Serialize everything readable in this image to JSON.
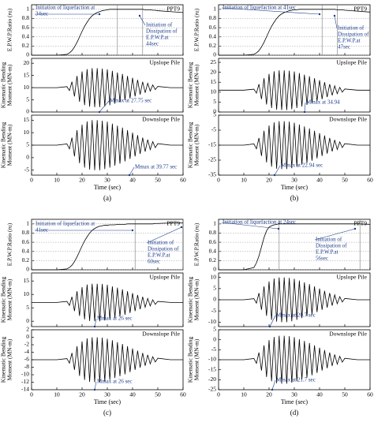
{
  "chart_data": [
    {
      "type": "line",
      "caption": "(a)",
      "xlabel": "Time (sec)",
      "xlim": [
        0,
        60
      ],
      "xticks": [
        0,
        10,
        20,
        30,
        40,
        50,
        60
      ],
      "x": [
        0,
        10,
        14,
        15,
        16,
        17,
        18,
        19,
        20,
        21,
        22,
        23,
        24,
        25,
        26,
        27,
        28,
        29,
        30,
        31,
        32,
        33,
        34,
        35,
        36,
        37,
        38,
        39,
        40,
        41,
        42,
        43,
        44,
        45,
        46,
        47,
        48,
        49,
        50,
        55,
        60
      ],
      "series": [
        {
          "name": "PPT9",
          "color": "#000000",
          "ylabel": [
            "E.P.W.P.Ratio (ru)"
          ],
          "ylim": [
            0,
            1.1
          ],
          "yticks": [
            0,
            0.2,
            0.4,
            0.6,
            0.8,
            1
          ],
          "grid": true,
          "markers": [
            34,
            44
          ],
          "annotations": [
            [
              "Initiation of liquefaction at",
              "34sec"
            ],
            [
              "Initiation of",
              "Dissipation of",
              "E.P.W.P.at",
              "44sec"
            ]
          ],
          "values": [
            0,
            0,
            0.02,
            0.05,
            0.1,
            0.18,
            0.28,
            0.4,
            0.52,
            0.63,
            0.72,
            0.8,
            0.86,
            0.9,
            0.93,
            0.95,
            0.97,
            0.98,
            0.99,
            1,
            1,
            1,
            1,
            1,
            1,
            1,
            1,
            1,
            1,
            1,
            1,
            1,
            1,
            0.99,
            0.99,
            0.99,
            0.98,
            0.98,
            0.97,
            0.95,
            0.93
          ]
        },
        {
          "name": "Upslope Pile",
          "color": "#000000",
          "ylabel": [
            "Kinematic Bending",
            "Moment (MN-m)"
          ],
          "ylim": [
            0,
            22
          ],
          "yticks": [
            0,
            5,
            10,
            15,
            20
          ],
          "annotations": [
            [
              "Mmax at 27.75 sec"
            ]
          ],
          "values": [
            10,
            10,
            10.4,
            8.8,
            12.4,
            6.4,
            14.8,
            4.2,
            16.6,
            2.8,
            17.6,
            2.2,
            18,
            2,
            18,
            2,
            17.8,
            2.3,
            17.5,
            2.8,
            16.9,
            3.4,
            16.2,
            4.1,
            15.6,
            4.8,
            14.8,
            5.6,
            14,
            6.4,
            13.2,
            7.2,
            12.4,
            7.9,
            11.8,
            8.6,
            11.1,
            9.2,
            10.5,
            10,
            10
          ]
        },
        {
          "name": "Downslope Pile",
          "color": "#000000",
          "ylabel": [
            "Kinematic Bending",
            "Moment (MN-m)"
          ],
          "ylim": [
            -7,
            17
          ],
          "yticks": [
            -5,
            0,
            5,
            10,
            15
          ],
          "annotations": [
            [
              "Mmax at 39.77 sec"
            ]
          ],
          "values": [
            5,
            5,
            5.5,
            3.5,
            8,
            0.5,
            11,
            -2.2,
            13.2,
            -4,
            14.5,
            -4.8,
            15,
            -5,
            15,
            -5,
            14.8,
            -4.6,
            14.4,
            -4,
            13.6,
            -3.2,
            12.8,
            -2.4,
            12,
            -1.5,
            11,
            -0.5,
            10,
            0.5,
            9,
            1.5,
            8,
            2.4,
            7.2,
            3.2,
            6.4,
            4,
            5.6,
            5,
            5
          ]
        }
      ]
    },
    {
      "type": "line",
      "caption": "(b)",
      "xlabel": "Time (sec)",
      "xlim": [
        0,
        60
      ],
      "xticks": [
        0,
        10,
        20,
        30,
        40,
        50,
        60
      ],
      "x": [
        0,
        10,
        14,
        15,
        16,
        17,
        18,
        19,
        20,
        21,
        22,
        23,
        24,
        25,
        26,
        27,
        28,
        29,
        30,
        31,
        32,
        33,
        34,
        35,
        36,
        37,
        38,
        39,
        40,
        41,
        42,
        43,
        44,
        45,
        46,
        47,
        48,
        49,
        50,
        55,
        60
      ],
      "series": [
        {
          "name": "PPT9",
          "color": "#000000",
          "ylabel": [
            "E.P.W.P.Ratio (ru)"
          ],
          "ylim": [
            0,
            1.1
          ],
          "yticks": [
            0,
            0.2,
            0.4,
            0.6,
            0.8,
            1
          ],
          "grid": true,
          "markers": [
            41,
            47
          ],
          "annotations": [
            [
              "Initiation of liquefaction at 41sec"
            ],
            [
              "Initiation of",
              "Dissipation of",
              "E.P.W.P.at",
              "47sec"
            ]
          ],
          "values": [
            0,
            0,
            0.02,
            0.05,
            0.1,
            0.18,
            0.28,
            0.4,
            0.52,
            0.63,
            0.72,
            0.8,
            0.86,
            0.9,
            0.93,
            0.95,
            0.97,
            0.98,
            0.99,
            0.99,
            1,
            1,
            1,
            1,
            1,
            1,
            1,
            1,
            1,
            1,
            1,
            1,
            1,
            1,
            1,
            0.99,
            0.99,
            0.99,
            0.98,
            0.96,
            0.94
          ]
        },
        {
          "name": "Upslope Pile",
          "color": "#000000",
          "ylabel": [
            "Kinematic Bending",
            "Moment (MN-m)"
          ],
          "ylim": [
            0,
            27
          ],
          "yticks": [
            0,
            5,
            10,
            15,
            20,
            25
          ],
          "annotations": [
            [
              "Mmax at 34.94"
            ]
          ],
          "values": [
            11,
            11,
            11.5,
            9.5,
            14,
            6.5,
            17,
            3.8,
            19.2,
            2,
            20.5,
            1.2,
            21,
            1,
            21,
            1,
            20.8,
            1.4,
            20.4,
            2,
            19.6,
            2.8,
            18.8,
            3.6,
            18,
            4.5,
            17,
            5.5,
            16,
            6.5,
            15,
            7.5,
            14,
            8.4,
            13.2,
            9.2,
            12.4,
            10,
            11.6,
            11,
            11
          ]
        },
        {
          "name": "Downslope Pile",
          "color": "#000000",
          "ylabel": [
            "Kinematic Bending",
            "Moment (MN-m)"
          ],
          "ylim": [
            -35,
            5
          ],
          "yticks": [
            -35,
            -25,
            -15,
            -5,
            5
          ],
          "annotations": [
            [
              "Mmax at 22.94 sec"
            ]
          ],
          "values": [
            -15,
            -15,
            -14.2,
            -17.4,
            -10.2,
            -22.2,
            -5.4,
            -26.5,
            -1.9,
            -29.4,
            0.2,
            -30.7,
            1,
            -31,
            1,
            -31,
            0.7,
            -30.4,
            0,
            -29.4,
            -1.2,
            -28.1,
            -2.5,
            -26.8,
            -3.8,
            -25.4,
            -5.4,
            -23.8,
            -7,
            -22.2,
            -8.6,
            -20.6,
            -10.2,
            -19.2,
            -11.5,
            -17.9,
            -12.8,
            -16.6,
            -14,
            -15,
            -15
          ]
        }
      ]
    },
    {
      "type": "line",
      "caption": "(c)",
      "xlabel": "Time (sec)",
      "xlim": [
        0,
        60
      ],
      "xticks": [
        0,
        10,
        20,
        30,
        40,
        50,
        60
      ],
      "x": [
        0,
        10,
        14,
        15,
        16,
        17,
        18,
        19,
        20,
        21,
        22,
        23,
        24,
        25,
        26,
        27,
        28,
        29,
        30,
        31,
        32,
        33,
        34,
        35,
        36,
        37,
        38,
        39,
        40,
        41,
        42,
        43,
        44,
        45,
        46,
        47,
        48,
        49,
        50,
        55,
        60
      ],
      "series": [
        {
          "name": "PPT9",
          "color": "#000000",
          "ylabel": [
            "E.P.W.P.Ratio (ru)"
          ],
          "ylim": [
            0,
            1.1
          ],
          "yticks": [
            0,
            0.2,
            0.4,
            0.6,
            0.8,
            1
          ],
          "grid": true,
          "markers": [
            41,
            60
          ],
          "annotations": [
            [
              "Initiation of liquefaction at",
              "41sec"
            ],
            [
              "Initiation of",
              "Dissipation of",
              "E.P.W.P.at",
              "60sec"
            ]
          ],
          "values": [
            0,
            0,
            0.02,
            0.05,
            0.1,
            0.18,
            0.28,
            0.4,
            0.52,
            0.63,
            0.72,
            0.8,
            0.86,
            0.9,
            0.93,
            0.95,
            0.96,
            0.97,
            0.97,
            0.98,
            0.98,
            0.98,
            0.99,
            0.99,
            0.99,
            0.99,
            1,
            1,
            1,
            1,
            1,
            1,
            1,
            1,
            1,
            1,
            1,
            1.01,
            1.01,
            1.02,
            1.02
          ]
        },
        {
          "name": "Upslope Pile",
          "color": "#000000",
          "ylabel": [
            "Kinematic Bending",
            "Moment (MN-m)"
          ],
          "ylim": [
            -2,
            18
          ],
          "yticks": [
            0,
            5,
            10,
            15
          ],
          "annotations": [
            [
              "Mmax at 26 sec"
            ]
          ],
          "values": [
            7,
            7,
            7.4,
            5.9,
            9.1,
            3.8,
            11.2,
            2,
            12.7,
            0.7,
            13.7,
            0.1,
            14,
            0,
            14,
            0,
            13.9,
            0.3,
            13.6,
            0.7,
            13,
            1.3,
            12.5,
            1.8,
            11.9,
            2.4,
            11.2,
            3.1,
            10.5,
            3.8,
            9.8,
            4.5,
            9.1,
            5.2,
            8.5,
            5.7,
            8,
            6.3,
            7.4,
            7,
            7
          ]
        },
        {
          "name": "Downslope Pile",
          "color": "#000000",
          "ylabel": [
            "Kinematic Bending",
            "Moment (MN-m)"
          ],
          "ylim": [
            -14,
            2
          ],
          "yticks": [
            -14,
            -12,
            -10,
            -8,
            -6,
            -4,
            -2,
            0,
            2
          ],
          "annotations": [
            [
              "Mmax at 26 sec"
            ]
          ],
          "values": [
            -6,
            -6,
            -5.7,
            -6.9,
            -4.2,
            -8.7,
            -2.4,
            -10.3,
            -1.1,
            -11.4,
            -0.3,
            -11.9,
            0,
            -12,
            0,
            -12,
            -0.1,
            -11.8,
            -0.4,
            -11.4,
            -0.8,
            -10.9,
            -1.3,
            -10.4,
            -1.8,
            -9.9,
            -2.4,
            -9.3,
            -3,
            -8.7,
            -3.6,
            -8.1,
            -4.2,
            -7.6,
            -4.7,
            -7.1,
            -5.2,
            -6.6,
            -5.6,
            -6,
            -6
          ]
        }
      ]
    },
    {
      "type": "line",
      "caption": "(d)",
      "xlabel": "Time (sec)",
      "xlim": [
        0,
        60
      ],
      "xticks": [
        0,
        10,
        20,
        30,
        40,
        50,
        60
      ],
      "x": [
        0,
        10,
        14,
        15,
        16,
        17,
        18,
        19,
        20,
        21,
        22,
        23,
        24,
        25,
        26,
        27,
        28,
        29,
        30,
        31,
        32,
        33,
        34,
        35,
        36,
        37,
        38,
        39,
        40,
        41,
        42,
        43,
        44,
        45,
        46,
        47,
        48,
        49,
        50,
        55,
        60
      ],
      "series": [
        {
          "name": "PPT9",
          "color": "#000000",
          "ylabel": [
            "E.P.W.P.Ratio (ru)"
          ],
          "ylim": [
            0,
            1.1
          ],
          "yticks": [
            0,
            0.2,
            0.4,
            0.6,
            0.8,
            1
          ],
          "grid": true,
          "markers": [
            24,
            56
          ],
          "annotations": [
            [
              "Initiation of liquefaction at 24sec"
            ],
            [
              "Initiation of",
              "Dissipation of",
              "E.P.W.P.at",
              "56sec"
            ]
          ],
          "values": [
            0,
            0,
            0.05,
            0.15,
            0.3,
            0.5,
            0.7,
            0.85,
            0.93,
            0.96,
            0.98,
            0.99,
            1,
            1,
            1,
            1,
            1,
            1,
            1,
            1,
            1,
            1,
            1,
            1,
            1,
            1,
            1,
            1,
            1,
            1,
            1,
            1,
            1,
            1,
            1,
            1,
            1,
            1,
            1,
            1,
            0.99
          ]
        },
        {
          "name": "Upslope Pile",
          "color": "#000000",
          "ylabel": [
            "Kinematic Bending",
            "Moment (MN-m)"
          ],
          "ylim": [
            -12,
            12
          ],
          "yticks": [
            -10,
            -5,
            0,
            5,
            10
          ],
          "annotations": [
            [
              "Mmax at 20.7 sec"
            ]
          ],
          "values": [
            0,
            0,
            0.5,
            -1.5,
            3,
            -4.5,
            6,
            -7.2,
            8.2,
            -9,
            9.5,
            -9.8,
            10,
            -10,
            10,
            -10,
            9.8,
            -9.6,
            9.4,
            -9,
            8.6,
            -8.2,
            7.8,
            -7.4,
            7,
            -6.5,
            6,
            -5.5,
            5,
            -4.5,
            4,
            -3.5,
            3,
            -2.6,
            2.2,
            -1.8,
            1.4,
            -1,
            0.6,
            0,
            0
          ]
        },
        {
          "name": "Downslope Pile",
          "color": "#000000",
          "ylabel": [
            "Kinematic Bending",
            "Moment (MN-m)"
          ],
          "ylim": [
            -25,
            5
          ],
          "yticks": [
            -25,
            -20,
            -15,
            -10,
            -5,
            0,
            5
          ],
          "annotations": [
            [
              "Mmax at 21.7 sec"
            ]
          ],
          "values": [
            -10,
            -10,
            -9.4,
            -11.8,
            -6.4,
            -15.4,
            -2.8,
            -18.6,
            -0.2,
            -20.8,
            1.4,
            -21.8,
            2,
            -22,
            2,
            -22,
            1.8,
            -21.5,
            1.3,
            -20.8,
            0.3,
            -19.8,
            -0.6,
            -18.9,
            -1.6,
            -17.8,
            -2.8,
            -16.6,
            -4,
            -15.4,
            -5.2,
            -14.2,
            -6.4,
            -13.1,
            -7.4,
            -12.2,
            -8.3,
            -11.2,
            -9.3,
            -10,
            -10
          ]
        }
      ]
    }
  ]
}
